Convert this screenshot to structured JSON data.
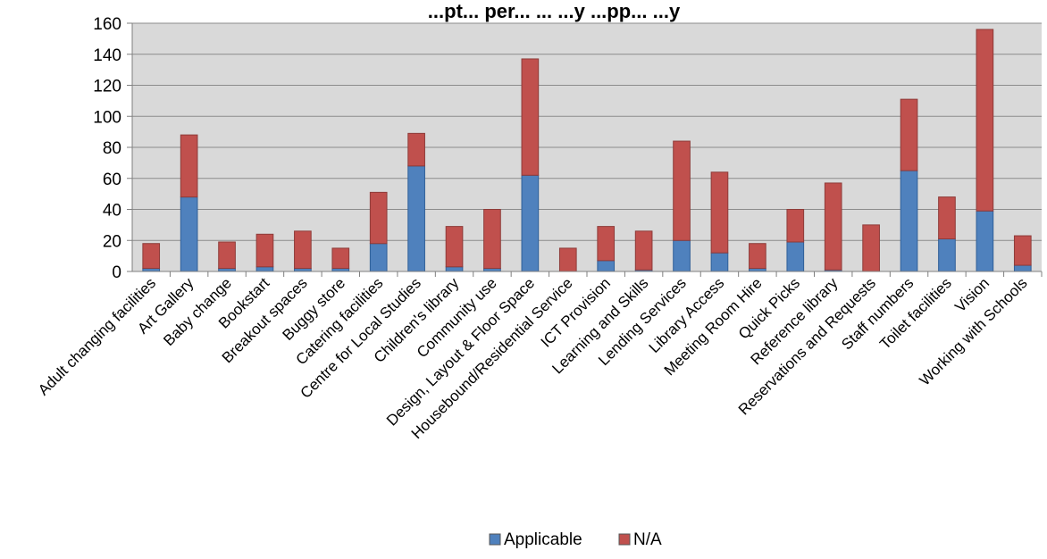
{
  "chart_data": {
    "type": "bar",
    "stacked": true,
    "title": "...pt... per... ... ...y ...pp... ...y",
    "xlabel": "",
    "ylabel": "",
    "ylim": [
      0,
      160
    ],
    "yticks": [
      0,
      20,
      40,
      60,
      80,
      100,
      120,
      140,
      160
    ],
    "grid": true,
    "legend": "bottom",
    "categories": [
      "Adult changing facilities",
      "Art Gallery",
      "Baby change",
      "Bookstart",
      "Breakout spaces",
      "Buggy store",
      "Catering facilities",
      "Centre for Local Studies",
      "Children's library",
      "Community use",
      "Design, Layout & Floor Space",
      "Housebound/Residential Service",
      "ICT Provision",
      "Learning and Skills",
      "Lending Services",
      "Library Access",
      "Meeting Room Hire",
      "Quick Picks",
      "Reference library",
      "Reservations and Requests",
      "Staff numbers",
      "Toilet facilities",
      "Vision",
      "Working with Schools"
    ],
    "series": [
      {
        "name": "Applicable",
        "color": "#4f81bd",
        "values": [
          2,
          48,
          2,
          3,
          2,
          2,
          18,
          68,
          3,
          2,
          62,
          0,
          7,
          1,
          20,
          12,
          2,
          19,
          1,
          0,
          65,
          21,
          39,
          4
        ]
      },
      {
        "name": "N/A",
        "color": "#c0504d",
        "values": [
          16,
          40,
          17,
          21,
          24,
          13,
          33,
          21,
          26,
          38,
          75,
          15,
          22,
          25,
          64,
          52,
          16,
          21,
          56,
          30,
          46,
          27,
          117,
          19
        ]
      }
    ]
  }
}
